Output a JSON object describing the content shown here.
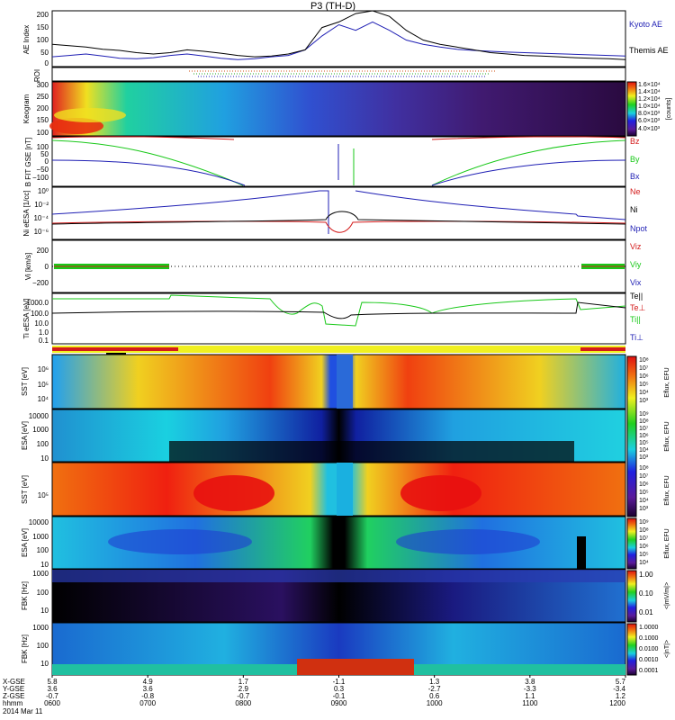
{
  "title": "P3 (TH-D)",
  "date_label": "2014 Mar 11",
  "colors": {
    "blue": "#1f1fb4",
    "red": "#d31a1a",
    "green": "#18c818",
    "ae_black": "#000000"
  },
  "chart_data": [
    {
      "type": "line",
      "ylabel": "AE Index",
      "ylim": [
        0,
        200
      ],
      "yticks": [
        "200",
        "150",
        "100",
        "50",
        "0"
      ],
      "series": [
        {
          "name": "Kyoto AE",
          "values": [
            35,
            40,
            45,
            38,
            30,
            28,
            32,
            40,
            45,
            38,
            30,
            25,
            28,
            35,
            40,
            60,
            110,
            150,
            130,
            160,
            130,
            95,
            80,
            70,
            62,
            58,
            55,
            52,
            50,
            48,
            46,
            44,
            42,
            40,
            38
          ]
        },
        {
          "name": "Themis AE",
          "values": [
            80,
            75,
            70,
            62,
            58,
            50,
            45,
            50,
            60,
            55,
            48,
            40,
            35,
            38,
            45,
            60,
            140,
            160,
            190,
            210,
            180,
            130,
            95,
            80,
            70,
            60,
            50,
            45,
            40,
            38,
            35,
            32,
            30,
            28,
            25
          ]
        }
      ]
    },
    {
      "type": "heatmap",
      "ylabel": "ROI",
      "ylim": [
        0,
        1
      ]
    },
    {
      "type": "heatmap",
      "ylabel": "Keogram",
      "ylim": [
        100,
        300
      ],
      "yticks": [
        "300",
        "250",
        "200",
        "150",
        "100"
      ],
      "colorbar_ticks": [
        "1.6×10⁴",
        "1.4×10⁴",
        "1.2×10⁴",
        "1.0×10⁴",
        "8.0×10³",
        "6.0×10³",
        "4.0×10³"
      ],
      "colorbar_label": "[counts]"
    },
    {
      "type": "line",
      "ylabel": "B FIT GSE [nT]",
      "ylim": [
        -150,
        150
      ],
      "yticks": [
        "100",
        "50",
        "0",
        "−50",
        "−100"
      ],
      "series": [
        {
          "name": "Bz"
        },
        {
          "name": "By"
        },
        {
          "name": "Bx"
        }
      ]
    },
    {
      "type": "line",
      "ylabel": "Ni eESA [1/cc]",
      "yticks": [
        "10⁰",
        "10⁻²",
        "10⁻⁴",
        "10⁻⁶"
      ],
      "series": [
        {
          "name": "Ne"
        },
        {
          "name": "Ni"
        },
        {
          "name": "Npot"
        }
      ]
    },
    {
      "type": "line",
      "ylabel": "Vi [km/s]",
      "ylim": [
        -300,
        300
      ],
      "yticks": [
        "200",
        "0",
        "−200"
      ],
      "series": [
        {
          "name": "Viz"
        },
        {
          "name": "Viy"
        },
        {
          "name": "Vix"
        }
      ]
    },
    {
      "type": "line",
      "ylabel": "Ti eESA [eV]",
      "yticks": [
        "1000.0",
        "100.0",
        "10.0",
        "1.0",
        "0.1"
      ],
      "series": [
        {
          "name": "Te||"
        },
        {
          "name": "Te⊥"
        },
        {
          "name": "Ti||"
        },
        {
          "name": "Ti⊥"
        }
      ]
    },
    {
      "type": "heatmap",
      "ylabel": "SST [eV]",
      "yticks": [
        "10⁶",
        "10⁵",
        "10⁴"
      ],
      "colorbar_ticks": [
        "10⁸",
        "10⁷",
        "10⁶",
        "10⁵",
        "10⁴",
        "10³"
      ],
      "colorbar_label": "Eflux, EFU"
    },
    {
      "type": "heatmap",
      "ylabel": "ESA [eV]",
      "yticks": [
        "10000",
        "1000",
        "100",
        "10"
      ],
      "colorbar_ticks": [
        "10⁹",
        "10⁸",
        "10⁷",
        "10⁶",
        "10⁵",
        "10⁴",
        "10³"
      ],
      "colorbar_label": "Eflux, EFU"
    },
    {
      "type": "heatmap",
      "ylabel": "SST [eV]",
      "yticks": [
        "10⁵"
      ],
      "colorbar_ticks": [
        "10⁸",
        "10⁷",
        "10⁶",
        "10⁵",
        "10⁴",
        "10³"
      ],
      "colorbar_label": "Eflux, EFU"
    },
    {
      "type": "heatmap",
      "ylabel": "ESA [eV]",
      "yticks": [
        "10000",
        "1000",
        "100",
        "10"
      ],
      "colorbar_ticks": [
        "10⁹",
        "10⁸",
        "10⁷",
        "10⁶",
        "10⁵",
        "10⁴"
      ],
      "colorbar_label": "Eflux, EFU"
    },
    {
      "type": "heatmap",
      "ylabel": "FBK [Hz]",
      "yticks": [
        "1000",
        "100",
        "10"
      ],
      "colorbar_ticks": [
        "1.00",
        "0.10",
        "0.01"
      ],
      "colorbar_label": "<|mV/m|>"
    },
    {
      "type": "heatmap",
      "ylabel": "FBK [Hz]",
      "yticks": [
        "1000",
        "100",
        "10"
      ],
      "colorbar_ticks": [
        "1.0000",
        "0.1000",
        "0.0100",
        "0.0010",
        "0.0001"
      ],
      "colorbar_label": "<|nT|>"
    }
  ],
  "axis": {
    "row_labels": [
      "X-GSE",
      "Y-GSE",
      "Z-GSE",
      "hhmm"
    ],
    "ticks": [
      {
        "x": "5.8",
        "y": "3.6",
        "z": "-0.7",
        "t": "0600"
      },
      {
        "x": "4.9",
        "y": "3.6",
        "z": "-0.8",
        "t": "0700"
      },
      {
        "x": "1.7",
        "y": "2.9",
        "z": "-0.7",
        "t": "0800"
      },
      {
        "x": "-1.1",
        "y": "0.3",
        "z": "-0.1",
        "t": "0900"
      },
      {
        "x": "1.3",
        "y": "-2.7",
        "z": "0.6",
        "t": "1000"
      },
      {
        "x": "3.8",
        "y": "-3.3",
        "z": "1.1",
        "t": "1100"
      },
      {
        "x": "5.7",
        "y": "-3.4",
        "z": "1.2",
        "t": "1200"
      }
    ]
  }
}
